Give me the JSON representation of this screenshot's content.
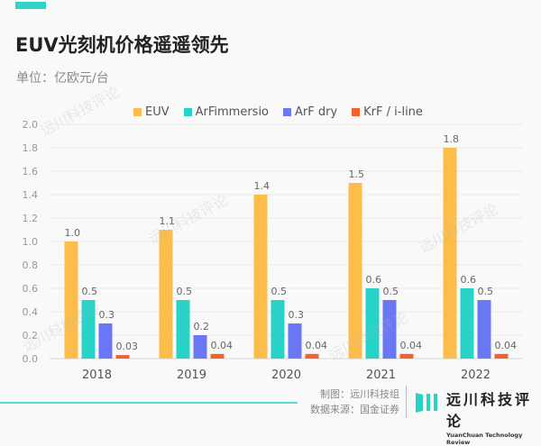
{
  "header": {
    "title": "EUV光刻机价格遥遥领先",
    "subtitle": "单位：亿欧元/台"
  },
  "footer": {
    "credit_line1": "制图：远川科技组",
    "credit_line2": "数据来源：国金证券",
    "logo_cn": "远川科技评论",
    "logo_en": "YuanChuan Technology Review"
  },
  "watermark": "远川科技评论",
  "colors": {
    "EUV": "#fdbd4a",
    "ArFimmersio": "#26d3c6",
    "ArF dry": "#6b78f5",
    "KrF / i-line": "#f2622d",
    "accent": "#2fd3c8"
  },
  "chart_data": {
    "type": "bar",
    "title": "EUV光刻机价格遥遥领先",
    "xlabel": "",
    "ylabel": "单位：亿欧元/台",
    "categories": [
      "2018",
      "2019",
      "2020",
      "2021",
      "2022"
    ],
    "series": [
      {
        "name": "EUV",
        "values": [
          1.0,
          1.1,
          1.4,
          1.5,
          1.8
        ],
        "labels": [
          "1.0",
          "1.1",
          "1.4",
          "1.5",
          "1.8"
        ]
      },
      {
        "name": "ArFimmersio",
        "values": [
          0.5,
          0.5,
          0.5,
          0.6,
          0.6
        ],
        "labels": [
          "0.5",
          "0.5",
          "0.5",
          "0.6",
          "0.6"
        ]
      },
      {
        "name": "ArF dry",
        "values": [
          0.3,
          0.2,
          0.3,
          0.5,
          0.5
        ],
        "labels": [
          "0.3",
          "0.2",
          "0.3",
          "0.5",
          "0.5"
        ]
      },
      {
        "name": "KrF / i-line",
        "values": [
          0.03,
          0.04,
          0.04,
          0.04,
          0.04
        ],
        "labels": [
          "0.03",
          "0.04",
          "0.04",
          "0.04",
          "0.04"
        ]
      }
    ],
    "ylim": [
      0,
      2.0
    ],
    "yticks": [
      "0.0",
      "0.2",
      "0.4",
      "0.6",
      "0.8",
      "1.0",
      "1.2",
      "1.4",
      "1.6",
      "1.8",
      "2.0"
    ],
    "grid": true,
    "legend": "top-center"
  }
}
